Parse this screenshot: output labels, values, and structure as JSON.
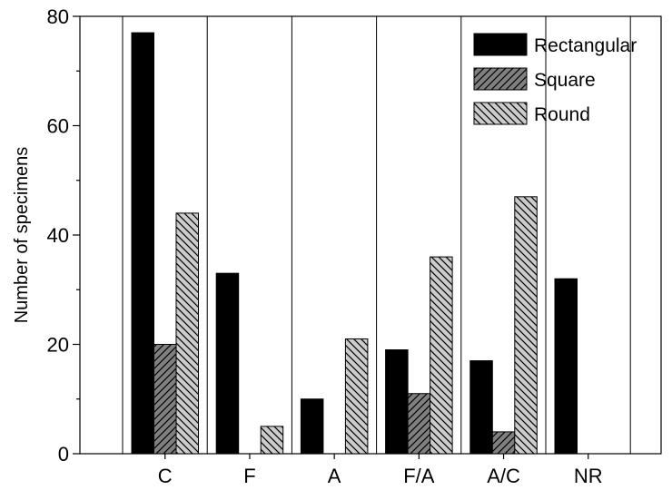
{
  "chart_data": {
    "type": "bar",
    "title": "",
    "xlabel": "",
    "ylabel": "Number of specimens",
    "ylim": [
      0,
      80
    ],
    "yticks": [
      0,
      20,
      40,
      60,
      80
    ],
    "categories": [
      "C",
      "F",
      "A",
      "F/A",
      "A/C",
      "NR"
    ],
    "series": [
      {
        "name": "Rectangular",
        "values": [
          77,
          33,
          10,
          19,
          17,
          32
        ],
        "fill": "#000000",
        "pattern": "solid"
      },
      {
        "name": "Square",
        "values": [
          20,
          0,
          0,
          11,
          4,
          0
        ],
        "fill": "#808080",
        "pattern": "hatch-dark"
      },
      {
        "name": "Round",
        "values": [
          44,
          5,
          21,
          36,
          47,
          0
        ],
        "fill": "#cccccc",
        "pattern": "hatch-light"
      }
    ],
    "grid": "vertical separators between categories",
    "legend_position": "top-right"
  }
}
